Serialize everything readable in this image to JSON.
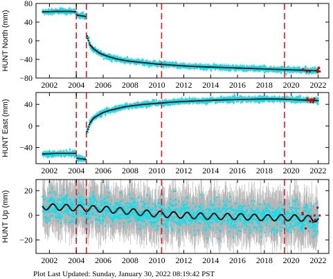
{
  "footer": "Plot Last Updated:   Sunday, January 30, 2022 08:19:42 PST",
  "colors": {
    "data": "#00e5f2",
    "error_bars": "#b4b4b4",
    "model": "#000000",
    "event_lines": "#e8151b",
    "outliers": "#d40000"
  },
  "chart_data": [
    {
      "type": "scatter",
      "ylabel": "HUNT North (mm)",
      "xlim": [
        2001.0,
        2022.8
      ],
      "ylim": [
        -80,
        80
      ],
      "xticks": [
        2002,
        2004,
        2006,
        2008,
        2010,
        2012,
        2014,
        2016,
        2018,
        2020,
        2022
      ],
      "yticks": [
        -80,
        -40,
        0,
        40,
        80
      ],
      "yticklabels": [
        "−80",
        "−40",
        "0",
        "40",
        "80"
      ],
      "event_lines_x": [
        2004.0,
        2004.75,
        2010.35,
        2019.5
      ],
      "series": [
        {
          "x": [
            2001.5,
            2002.5,
            2003.5,
            2003.95
          ],
          "y": [
            62,
            63,
            63,
            62
          ]
        },
        {
          "x": [
            2004.05,
            2004.7
          ],
          "y": [
            55,
            52
          ]
        },
        {
          "x": [
            2004.8,
            2005.0,
            2005.3,
            2005.7,
            2006.0,
            2006.5,
            2007.0,
            2007.5,
            2008.0,
            2009.0,
            2010.0,
            2011.0,
            2012.0,
            2013.0,
            2014.0,
            2015.0,
            2016.0,
            2017.0,
            2018.0,
            2019.0,
            2020.0,
            2021.0,
            2022.0
          ],
          "y": [
            10,
            -8,
            -18,
            -26,
            -30,
            -35,
            -39,
            -42,
            -44,
            -47,
            -50,
            -52,
            -54,
            -55.5,
            -56.5,
            -57.5,
            -58.5,
            -59.5,
            -60.5,
            -61.5,
            -62.5,
            -63.5,
            -64.5
          ]
        }
      ],
      "scatter_sd": 2.5
    },
    {
      "type": "scatter",
      "ylabel": "HUNT East (mm)",
      "xlim": [
        2001.0,
        2022.8
      ],
      "ylim": [
        -70,
        62
      ],
      "xticks": [
        2002,
        2004,
        2006,
        2008,
        2010,
        2012,
        2014,
        2016,
        2018,
        2020,
        2022
      ],
      "yticks": [
        -40,
        0,
        40
      ],
      "yticklabels": [
        "−40",
        "0",
        "40"
      ],
      "event_lines_x": [
        2004.0,
        2004.75,
        2010.35,
        2019.5
      ],
      "series": [
        {
          "x": [
            2001.5,
            2002.5,
            2003.5,
            2003.95
          ],
          "y": [
            -52,
            -51,
            -51,
            -51
          ]
        },
        {
          "x": [
            2004.05,
            2004.7
          ],
          "y": [
            -60,
            -62
          ]
        },
        {
          "x": [
            2004.8,
            2005.0,
            2005.3,
            2005.7,
            2006.0,
            2006.5,
            2007.0,
            2007.5,
            2008.0,
            2009.0,
            2010.0,
            2011.0,
            2012.0,
            2013.0,
            2014.0,
            2015.0,
            2016.0,
            2017.0,
            2018.0,
            2019.0,
            2020.0,
            2021.0,
            2022.0
          ],
          "y": [
            -10,
            5,
            15,
            21,
            25,
            29,
            32,
            35,
            37,
            40,
            42,
            44,
            45.5,
            46.5,
            47.5,
            48.5,
            49,
            49.5,
            50,
            50,
            49,
            48,
            47
          ]
        }
      ],
      "scatter_sd": 2.2
    },
    {
      "type": "scatter",
      "ylabel": "HUNT Up (mm)",
      "xlim": [
        2001.0,
        2022.8
      ],
      "ylim": [
        -31,
        29
      ],
      "xticks": [
        2002,
        2004,
        2006,
        2008,
        2010,
        2012,
        2014,
        2016,
        2018,
        2020,
        2022
      ],
      "yticks": [
        -20,
        0,
        20
      ],
      "yticklabels": [
        "−20",
        "0",
        "20"
      ],
      "event_lines_x": [
        2004.0,
        2004.75,
        2010.35,
        2019.5
      ],
      "series": [
        {
          "x": [
            2001.5,
            2004.0,
            2006.0,
            2008.0,
            2010.0,
            2012.0,
            2014.0,
            2016.0,
            2018.0,
            2020.0,
            2022.0
          ],
          "y": [
            7,
            6,
            5,
            3,
            1,
            0,
            -1,
            -1,
            -2,
            -2,
            -3
          ],
          "seasonal_amplitude": 2.5
        }
      ],
      "scatter_sd": 5.5
    }
  ]
}
